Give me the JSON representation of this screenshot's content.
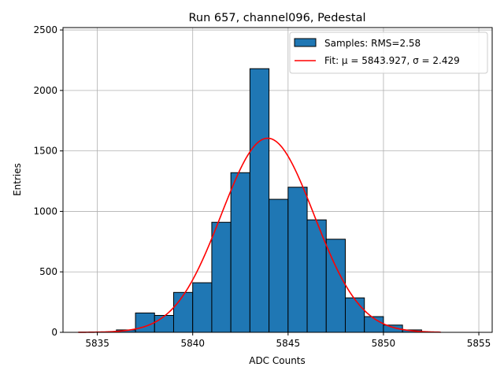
{
  "chart_data": {
    "type": "bar",
    "title": "Run 657, channel096, Pedestal",
    "xlabel": "ADC Counts",
    "ylabel": "Entries",
    "xlim": [
      5833.2,
      5855.7
    ],
    "ylim": [
      0,
      2520
    ],
    "xticks": [
      5835,
      5840,
      5845,
      5850,
      5855
    ],
    "yticks": [
      0,
      500,
      1000,
      1500,
      2000,
      2500
    ],
    "grid": true,
    "legend_position": "top-right",
    "bin_width": 1,
    "bars": [
      {
        "x0": 5836,
        "value": 20
      },
      {
        "x0": 5837,
        "value": 160
      },
      {
        "x0": 5838,
        "value": 140
      },
      {
        "x0": 5839,
        "value": 330
      },
      {
        "x0": 5840,
        "value": 410
      },
      {
        "x0": 5841,
        "value": 910
      },
      {
        "x0": 5842,
        "value": 1320
      },
      {
        "x0": 5843,
        "value": 2180
      },
      {
        "x0": 5844,
        "value": 1100
      },
      {
        "x0": 5845,
        "value": 1200
      },
      {
        "x0": 5846,
        "value": 930
      },
      {
        "x0": 5847,
        "value": 770
      },
      {
        "x0": 5848,
        "value": 285
      },
      {
        "x0": 5849,
        "value": 130
      },
      {
        "x0": 5850,
        "value": 60
      },
      {
        "x0": 5851,
        "value": 20
      }
    ],
    "fit": {
      "mu": 5843.927,
      "sigma": 2.429,
      "amplitude": 1605,
      "x_range": [
        5834,
        5853
      ]
    },
    "legend": [
      {
        "label": "Samples: RMS=2.58",
        "kind": "patch",
        "color": "#1f77b4"
      },
      {
        "label": "Fit: μ = 5843.927, σ = 2.429",
        "kind": "line",
        "color": "#ff0000"
      }
    ],
    "colors": {
      "bar": "#1f77b4",
      "fit": "#ff0000",
      "grid": "#b0b0b0"
    }
  }
}
